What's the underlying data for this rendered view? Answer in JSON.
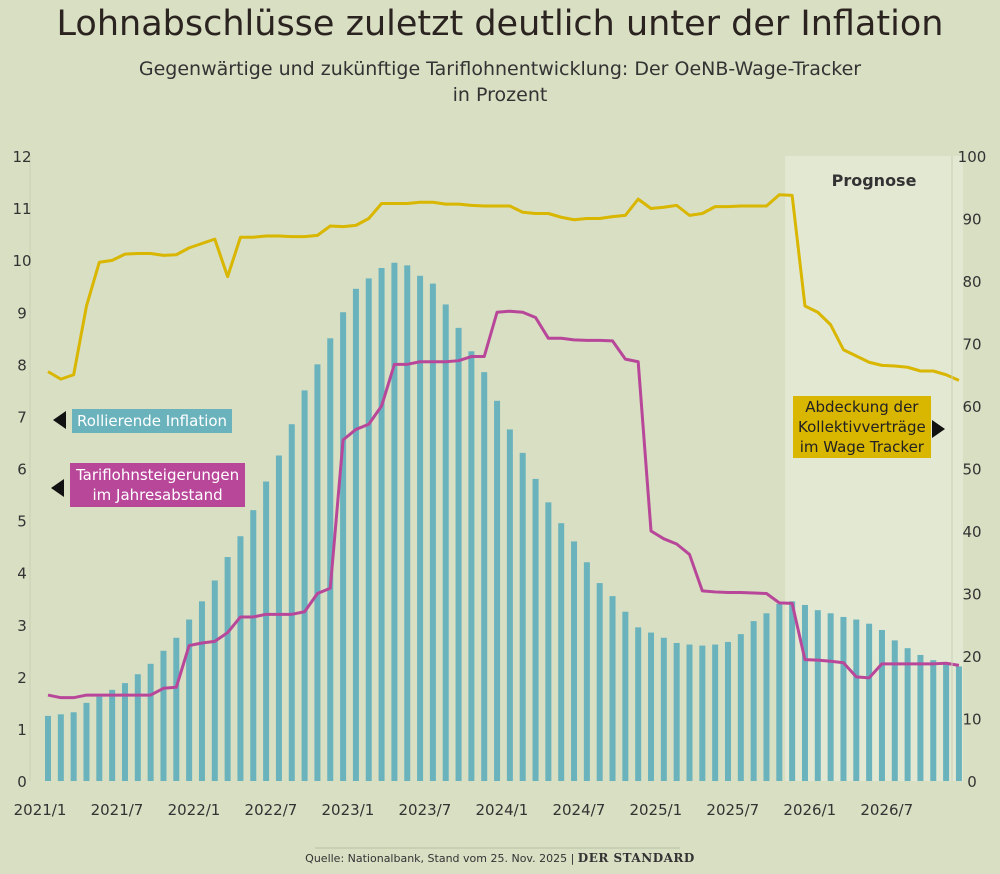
{
  "title": "Lohnabschlüsse zuletzt deutlich unter der Inflation",
  "subtitle_line1": "Gegenwärtige und zukünftige Tariflohnentwicklung: Der OeNB-Wage-Tracker",
  "subtitle_line2": "in Prozent",
  "source": "Quelle: Nationalbank, Stand vom 25. Nov. 2025 |",
  "brand": "DER STANDARD",
  "colors": {
    "background": "#d8dfc3",
    "forecast_bg": "#e3e8d3",
    "inflation": "#6ab3bd",
    "tarif": "#b8479a",
    "coverage": "#d9b600"
  },
  "chart_data": {
    "type": "bar+line",
    "x_start": "2021/1",
    "x_end": "2026/12",
    "frequency": "monthly",
    "x_tick_labels": [
      "2021/1",
      "2021/7",
      "2022/1",
      "2022/7",
      "2023/1",
      "2023/7",
      "2024/1",
      "2024/7",
      "2025/1",
      "2025/7",
      "2026/1",
      "2026/7"
    ],
    "y_left": {
      "ylim": [
        0,
        12
      ],
      "ticks": [
        "0",
        "1",
        "2",
        "3",
        "4",
        "5",
        "6",
        "7",
        "8",
        "9",
        "10",
        "11",
        "12"
      ]
    },
    "y_right": {
      "ylim": [
        0,
        100
      ],
      "ticks": [
        "0",
        "10",
        "20",
        "30",
        "40",
        "50",
        "60",
        "70",
        "80",
        "90",
        "100"
      ]
    },
    "forecast_label": "Prognose",
    "forecast_start": "2025/11",
    "grid": false,
    "series": [
      {
        "name": "Rollierende Inflation",
        "type": "bar",
        "axis": "left",
        "values": [
          1.25,
          1.28,
          1.32,
          1.5,
          1.62,
          1.75,
          1.88,
          2.05,
          2.25,
          2.5,
          2.75,
          3.1,
          3.45,
          3.85,
          4.3,
          4.7,
          5.2,
          5.75,
          6.25,
          6.85,
          7.5,
          8.0,
          8.5,
          9.0,
          9.45,
          9.65,
          9.85,
          9.95,
          9.9,
          9.7,
          9.55,
          9.15,
          8.7,
          8.25,
          7.85,
          7.3,
          6.75,
          6.3,
          5.8,
          5.35,
          4.95,
          4.6,
          4.2,
          3.8,
          3.55,
          3.25,
          2.95,
          2.85,
          2.75,
          2.65,
          2.62,
          2.6,
          2.62,
          2.67,
          2.82,
          3.07,
          3.22,
          3.4,
          3.45,
          3.38,
          3.28,
          3.22,
          3.15,
          3.1,
          3.02,
          2.9,
          2.7,
          2.55,
          2.42,
          2.32,
          2.25,
          2.2
        ]
      },
      {
        "name": "Tariflohnsteigerungen im Jahresabstand",
        "type": "line",
        "axis": "left",
        "values": [
          1.65,
          1.6,
          1.6,
          1.65,
          1.65,
          1.65,
          1.65,
          1.65,
          1.65,
          1.78,
          1.8,
          2.6,
          2.65,
          2.68,
          2.85,
          3.15,
          3.15,
          3.2,
          3.2,
          3.2,
          3.25,
          3.6,
          3.7,
          6.55,
          6.75,
          6.85,
          7.2,
          8.0,
          8.0,
          8.05,
          8.05,
          8.05,
          8.07,
          8.15,
          8.15,
          9.0,
          9.02,
          9.0,
          8.9,
          8.5,
          8.5,
          8.47,
          8.46,
          8.46,
          8.45,
          8.1,
          8.05,
          4.8,
          4.65,
          4.55,
          4.35,
          3.65,
          3.63,
          3.62,
          3.62,
          3.61,
          3.6,
          3.42,
          3.41,
          2.33,
          2.32,
          2.3,
          2.27,
          2.0,
          1.98,
          2.25,
          2.25,
          2.25,
          2.25,
          2.25,
          2.26,
          2.22
        ]
      },
      {
        "name": "Abdeckung der Kollektivverträge im Wage Tracker",
        "type": "line",
        "axis": "right",
        "values": [
          65.5,
          64.3,
          65,
          76,
          83,
          83.3,
          84.3,
          84.4,
          84.4,
          84.1,
          84.2,
          85.3,
          86,
          86.7,
          80.7,
          87,
          87,
          87.2,
          87.2,
          87.1,
          87.1,
          87.3,
          88.8,
          88.7,
          88.9,
          90,
          92.4,
          92.4,
          92.4,
          92.6,
          92.6,
          92.3,
          92.3,
          92.1,
          92,
          92,
          92,
          91,
          90.8,
          90.8,
          90.2,
          89.8,
          90,
          90,
          90.3,
          90.5,
          93.1,
          91.6,
          91.8,
          92.1,
          90.5,
          90.8,
          91.9,
          91.9,
          92,
          92,
          92,
          93.8,
          93.7,
          76,
          75,
          73,
          69,
          68,
          67,
          66.5,
          66.4,
          66.2,
          65.6,
          65.6,
          65,
          64.1
        ]
      }
    ]
  },
  "legend": {
    "inflation": "Rollierende Inflation",
    "tarif_line1": "Tariflohnsteigerungen",
    "tarif_line2": "im Jahresabstand",
    "coverage_line1": "Abdeckung der",
    "coverage_line2": "Kollektivverträge",
    "coverage_line3": "im Wage Tracker"
  }
}
